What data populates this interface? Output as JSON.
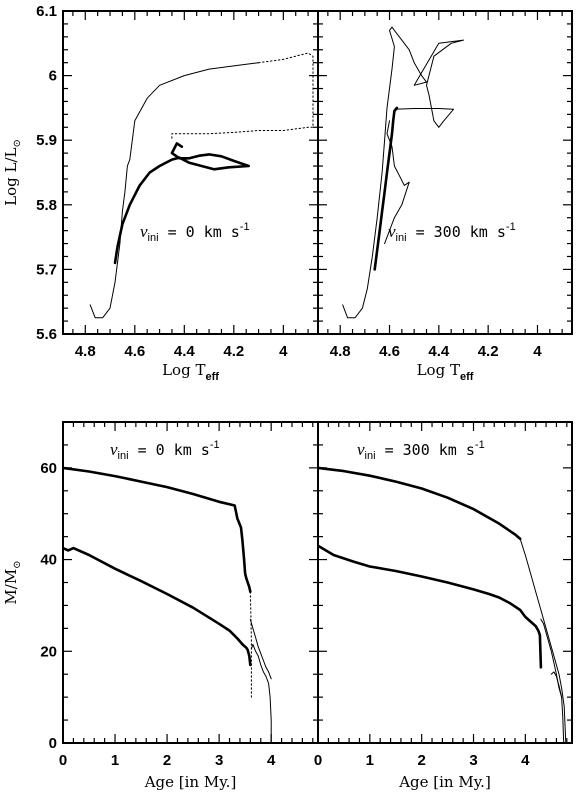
{
  "chart_data": [
    {
      "type": "line",
      "name": "hrd_vini_0",
      "xlabel": "Log T_eff",
      "ylabel": "Log L/L_sun",
      "xlim": [
        4.89,
        3.86
      ],
      "ylim": [
        5.6,
        6.1
      ],
      "xticks": [
        "4.8",
        "4.6",
        "4.4",
        "4.2",
        "4"
      ],
      "yticks": [
        "5.6",
        "5.7",
        "5.8",
        "5.9",
        "6",
        "6.1"
      ],
      "annotation": {
        "symbol": "v",
        "subscript": "ini",
        "text": " = 0 km s",
        "sup": "-1"
      },
      "series": [
        {
          "style": "thin",
          "x": [
            4.78,
            4.76,
            4.73,
            4.7,
            4.68,
            4.66,
            4.65,
            4.64,
            4.63,
            4.62,
            4.6,
            4.55,
            4.5,
            4.4,
            4.3,
            4.2,
            4.1
          ],
          "y": [
            5.645,
            5.625,
            5.625,
            5.64,
            5.68,
            5.74,
            5.79,
            5.82,
            5.86,
            5.87,
            5.93,
            5.965,
            5.985,
            6.0,
            6.01,
            6.015,
            6.02
          ]
        },
        {
          "style": "dotted",
          "x": [
            4.1,
            4.0,
            3.9,
            3.88,
            3.88,
            3.9,
            4.0,
            4.1,
            4.2,
            4.3,
            4.4,
            4.45,
            4.45
          ],
          "y": [
            6.02,
            6.025,
            6.035,
            6.03,
            5.92,
            5.92,
            5.915,
            5.915,
            5.912,
            5.91,
            5.91,
            5.91,
            5.9
          ]
        },
        {
          "style": "thick",
          "x": [
            4.68,
            4.67,
            4.65,
            4.62,
            4.58,
            4.54,
            4.5,
            4.45,
            4.42,
            4.38,
            4.33,
            4.28,
            4.22,
            4.14,
            4.2,
            4.25,
            4.3,
            4.34,
            4.38,
            4.42,
            4.45,
            4.43,
            4.41
          ],
          "y": [
            5.71,
            5.735,
            5.77,
            5.8,
            5.83,
            5.85,
            5.86,
            5.87,
            5.873,
            5.865,
            5.86,
            5.855,
            5.858,
            5.86,
            5.868,
            5.875,
            5.878,
            5.876,
            5.872,
            5.872,
            5.88,
            5.895,
            5.89
          ]
        }
      ]
    },
    {
      "type": "line",
      "name": "hrd_vini_300",
      "xlabel": "Log T_eff",
      "ylabel": "",
      "xlim": [
        4.89,
        3.86
      ],
      "ylim": [
        5.6,
        6.1
      ],
      "xticks": [
        "4.8",
        "4.6",
        "4.4",
        "4.2",
        "4"
      ],
      "annotation": {
        "symbol": "v",
        "subscript": "ini",
        "text": " = 300 km s",
        "sup": "-1"
      },
      "series": [
        {
          "style": "thin",
          "x": [
            4.79,
            4.77,
            4.74,
            4.71,
            4.69,
            4.67,
            4.65,
            4.63,
            4.62,
            4.61,
            4.6,
            4.59,
            4.58,
            4.6,
            4.59,
            4.58,
            4.55,
            4.52,
            4.5,
            4.47,
            4.45,
            4.5,
            4.4,
            4.3,
            4.35,
            4.42,
            4.45,
            4.44,
            4.42,
            4.4,
            4.38,
            4.34,
            4.4,
            4.5,
            4.58
          ],
          "y": [
            5.645,
            5.625,
            5.625,
            5.64,
            5.67,
            5.72,
            5.78,
            5.85,
            5.9,
            5.95,
            5.98,
            6.01,
            6.045,
            6.07,
            6.075,
            6.07,
            6.055,
            6.04,
            6.02,
            6.0,
            5.99,
            5.985,
            6.05,
            6.055,
            6.05,
            6.03,
            5.985,
            5.97,
            5.93,
            5.92,
            5.93,
            5.948,
            5.949,
            5.949,
            5.948
          ]
        },
        {
          "style": "thin",
          "x": [
            4.6,
            4.61,
            4.59,
            4.58,
            4.56,
            4.54,
            4.52,
            4.55,
            4.58,
            4.6,
            4.62
          ],
          "y": [
            5.93,
            5.91,
            5.89,
            5.86,
            5.845,
            5.83,
            5.835,
            5.8,
            5.78,
            5.76,
            5.74
          ]
        },
        {
          "style": "thick",
          "x": [
            4.66,
            4.65,
            4.64,
            4.63,
            4.62,
            4.61,
            4.6,
            4.59,
            4.585,
            4.58,
            4.57
          ],
          "y": [
            5.7,
            5.73,
            5.76,
            5.79,
            5.82,
            5.85,
            5.88,
            5.91,
            5.93,
            5.945,
            5.95
          ]
        }
      ]
    },
    {
      "type": "line",
      "name": "mass_vini_0",
      "xlabel": "Age [in My.]",
      "ylabel": "M/M_sun",
      "xlim": [
        0,
        4.9
      ],
      "ylim": [
        0,
        70
      ],
      "xticks": [
        "0",
        "1",
        "2",
        "3",
        "4"
      ],
      "yticks": [
        "0",
        "20",
        "40",
        "60"
      ],
      "annotation": {
        "symbol": "v",
        "subscript": "ini",
        "text": " = 0 km s",
        "sup": "-1"
      },
      "series": [
        {
          "style": "thick",
          "x": [
            0.0,
            0.5,
            1.0,
            1.5,
            2.0,
            2.5,
            3.0,
            3.3,
            3.35,
            3.42,
            3.45,
            3.48,
            3.5,
            3.52,
            3.55,
            3.58,
            3.6
          ],
          "y": [
            60.0,
            59.2,
            58.2,
            57.0,
            55.8,
            54.3,
            52.6,
            51.8,
            49.0,
            47.0,
            44.0,
            40.0,
            37.0,
            36.0,
            35.0,
            34.0,
            33.0
          ]
        },
        {
          "style": "thick",
          "x": [
            0.0,
            0.1,
            0.2,
            0.5,
            1.0,
            1.5,
            2.0,
            2.5,
            3.0,
            3.2,
            3.35,
            3.45,
            3.52,
            3.55,
            3.58,
            3.6
          ],
          "y": [
            42.5,
            42.0,
            42.5,
            41.0,
            38.0,
            35.3,
            32.5,
            29.5,
            26.0,
            24.5,
            22.8,
            21.5,
            20.8,
            20.3,
            19.0,
            17.0
          ]
        },
        {
          "style": "dotted",
          "x": [
            3.6,
            3.61,
            3.62,
            3.62,
            3.62
          ],
          "y": [
            33.0,
            28.0,
            22.0,
            15.0,
            10.0
          ]
        },
        {
          "style": "thin",
          "x": [
            3.6,
            3.65,
            3.7,
            3.75,
            3.8,
            3.85,
            3.9,
            3.95,
            4.0
          ],
          "y": [
            27.0,
            25.0,
            23.0,
            21.0,
            19.5,
            18.0,
            16.5,
            15.5,
            14.0
          ]
        },
        {
          "style": "thin",
          "x": [
            3.62,
            3.65,
            3.7,
            3.75,
            3.8,
            3.85,
            3.9,
            3.95,
            3.98,
            4.0,
            4.0
          ],
          "y": [
            20.5,
            21.5,
            20.0,
            19.0,
            17.0,
            15.5,
            14.5,
            13.0,
            10.0,
            5.0,
            0.0
          ]
        }
      ]
    },
    {
      "type": "line",
      "name": "mass_vini_300",
      "xlabel": "Age [in My.]",
      "ylabel": "",
      "xlim": [
        0,
        4.9
      ],
      "ylim": [
        0,
        70
      ],
      "xticks": [
        "0",
        "1",
        "2",
        "3",
        "4"
      ],
      "annotation": {
        "symbol": "v",
        "subscript": "ini",
        "text": " = 300 km s",
        "sup": "-1"
      },
      "series": [
        {
          "style": "thick",
          "x": [
            0.0,
            0.5,
            1.0,
            1.5,
            2.0,
            2.5,
            3.0,
            3.5,
            3.8,
            3.9
          ],
          "y": [
            60.0,
            59.3,
            58.3,
            57.0,
            55.5,
            53.5,
            51.0,
            47.8,
            45.5,
            44.5
          ]
        },
        {
          "style": "thin",
          "x": [
            3.9,
            4.0,
            4.1,
            4.2,
            4.3,
            4.4,
            4.5,
            4.6,
            4.65,
            4.7,
            4.75,
            4.78
          ],
          "y": [
            44.5,
            41.0,
            37.0,
            33.0,
            29.0,
            25.0,
            21.0,
            17.0,
            15.0,
            12.0,
            8.0,
            0.0
          ]
        },
        {
          "style": "thick",
          "x": [
            0.0,
            0.3,
            0.7,
            1.0,
            1.5,
            2.0,
            2.5,
            3.0,
            3.3,
            3.5,
            3.7,
            3.9,
            4.0,
            4.1,
            4.2,
            4.25,
            4.28,
            4.3
          ],
          "y": [
            43.0,
            41.0,
            39.5,
            38.5,
            37.5,
            36.3,
            35.0,
            33.5,
            32.5,
            31.7,
            30.5,
            29.0,
            27.5,
            26.5,
            25.5,
            24.5,
            23.5,
            16.5
          ]
        },
        {
          "style": "thin",
          "x": [
            4.3,
            4.35,
            4.4,
            4.45,
            4.5,
            4.55,
            4.6,
            4.65,
            4.7
          ],
          "y": [
            27.0,
            26.0,
            24.0,
            22.0,
            20.0,
            17.5,
            15.0,
            12.0,
            10.0
          ]
        },
        {
          "style": "thin",
          "x": [
            4.5,
            4.55,
            4.6,
            4.65,
            4.7,
            4.72,
            4.74
          ],
          "y": [
            15.0,
            15.5,
            14.5,
            12.5,
            10.0,
            6.0,
            0.0
          ]
        }
      ]
    }
  ]
}
